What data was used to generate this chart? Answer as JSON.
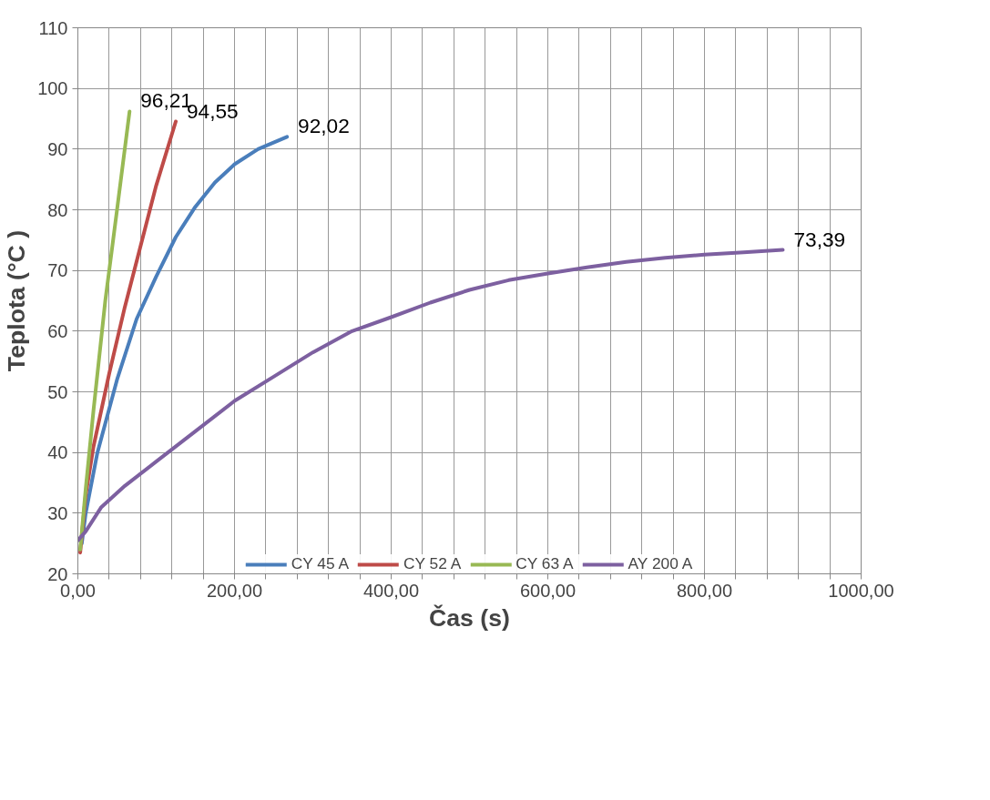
{
  "chart_data": {
    "type": "line",
    "xlabel": "Čas (s)",
    "ylabel": "Teplota (°C )",
    "xlim": [
      0,
      1000
    ],
    "ylim": [
      20,
      110
    ],
    "xticks": [
      {
        "value": 0,
        "label": "0,00"
      },
      {
        "value": 40,
        "label": null
      },
      {
        "value": 80,
        "label": null
      },
      {
        "value": 120,
        "label": null
      },
      {
        "value": 160,
        "label": null
      },
      {
        "value": 200,
        "label": "200,00"
      },
      {
        "value": 240,
        "label": null
      },
      {
        "value": 280,
        "label": null
      },
      {
        "value": 320,
        "label": null
      },
      {
        "value": 360,
        "label": null
      },
      {
        "value": 400,
        "label": "400,00"
      },
      {
        "value": 440,
        "label": null
      },
      {
        "value": 480,
        "label": null
      },
      {
        "value": 520,
        "label": null
      },
      {
        "value": 560,
        "label": null
      },
      {
        "value": 600,
        "label": "600,00"
      },
      {
        "value": 640,
        "label": null
      },
      {
        "value": 680,
        "label": null
      },
      {
        "value": 720,
        "label": null
      },
      {
        "value": 760,
        "label": null
      },
      {
        "value": 800,
        "label": "800,00"
      },
      {
        "value": 840,
        "label": null
      },
      {
        "value": 880,
        "label": null
      },
      {
        "value": 920,
        "label": null
      },
      {
        "value": 960,
        "label": null
      },
      {
        "value": 1000,
        "label": "1000,00"
      }
    ],
    "yticks": [
      20,
      30,
      40,
      50,
      60,
      70,
      80,
      90,
      100,
      110
    ],
    "grid": true,
    "legend": "bottom",
    "marker": "none",
    "line_style": "solid",
    "series": [
      {
        "name": "CY 45 A",
        "color": "#4a7ebb",
        "x": [
          5,
          10,
          25,
          50,
          75,
          100,
          125,
          150,
          175,
          200,
          230,
          267
        ],
        "values": [
          25,
          30,
          40,
          52,
          62,
          69,
          75.5,
          80.5,
          84.5,
          87.5,
          90,
          92.02
        ]
      },
      {
        "name": "CY 52 A",
        "color": "#be4b48",
        "x": [
          3,
          10,
          20,
          40,
          60,
          80,
          100,
          125
        ],
        "values": [
          23.5,
          33,
          41,
          53,
          64,
          74,
          84,
          94.55
        ]
      },
      {
        "name": "CY 63 A",
        "color": "#98b954",
        "x": [
          3,
          10,
          20,
          35,
          50,
          66
        ],
        "values": [
          24,
          34,
          47,
          65,
          80,
          96.21
        ]
      },
      {
        "name": "AY 200 A",
        "color": "#7d60a0",
        "x": [
          0,
          10,
          30,
          60,
          100,
          150,
          200,
          250,
          300,
          350,
          400,
          450,
          500,
          550,
          600,
          650,
          700,
          750,
          800,
          850,
          900
        ],
        "values": [
          25.5,
          27,
          31,
          34.5,
          38.5,
          43.5,
          48.5,
          52.5,
          56.5,
          60,
          62.3,
          64.7,
          66.8,
          68.4,
          69.5,
          70.5,
          71.4,
          72.1,
          72.6,
          73,
          73.39
        ]
      }
    ],
    "annotations": [
      {
        "text": "96,21",
        "x": 66,
        "y": 96.21
      },
      {
        "text": "94,55",
        "x": 125,
        "y": 94.55
      },
      {
        "text": "92,02",
        "x": 267,
        "y": 92.02
      },
      {
        "text": "73,39",
        "x": 900,
        "y": 73.39
      }
    ]
  }
}
